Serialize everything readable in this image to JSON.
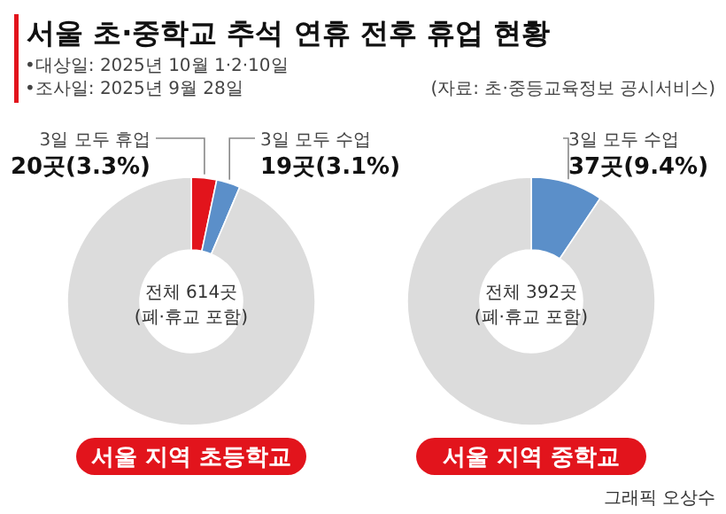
{
  "chart_data": [
    {
      "type": "donut",
      "title": "서울 초·중학교 추석 연휴 전후 휴업 현황",
      "subtitle": "•대상일: 2025년 10월 1·2·10일",
      "xlabel": "서울 지역 초등학교",
      "categories": [
        "3일 모두 휴업",
        "3일 모두 수업",
        null
      ],
      "values": [
        3.3,
        3.1,
        93.6
      ],
      "colors": [
        "#e2141c",
        "#5b8fc9",
        "#dcdcdc"
      ],
      "value_labels": [
        "20곳(3.3%)",
        "19곳(3.1%)",
        null
      ],
      "annotations": [
        "•조사일: 2025년 9월 28일",
        "(자료: 초·중등교육정보 공시서비스)",
        "전체 614곳",
        "(폐·휴교 포함)"
      ]
    },
    {
      "type": "donut",
      "xlabel": "서울 지역 중학교",
      "categories": [
        "3일 모두 수업",
        null
      ],
      "values": [
        9.4,
        90.6
      ],
      "colors": [
        "#5b8fc9",
        "#dcdcdc"
      ],
      "value_labels": [
        "37곳(9.4%)",
        null
      ],
      "annotations": [
        "전체 392곳",
        "(폐·휴교 포함)",
        "그래픽 오상수"
      ]
    }
  ]
}
